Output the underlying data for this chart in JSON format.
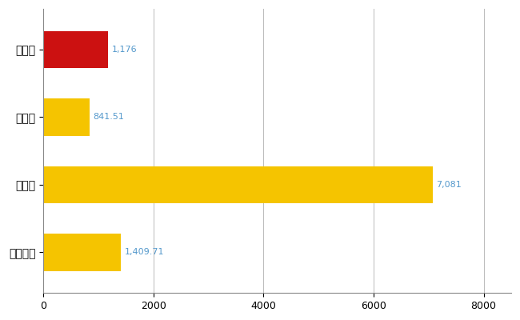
{
  "categories": [
    "石垣市",
    "県平均",
    "県最大",
    "全国平均"
  ],
  "values": [
    1176,
    841.51,
    7081,
    1409.71
  ],
  "bar_colors": [
    "#CC1111",
    "#F5C400",
    "#F5C400",
    "#F5C400"
  ],
  "value_labels": [
    "1,176",
    "841.51",
    "7,081",
    "1,409.71"
  ],
  "xlim": [
    0,
    8500
  ],
  "xticks": [
    0,
    2000,
    4000,
    6000,
    8000
  ],
  "background_color": "#FFFFFF",
  "grid_color": "#BBBBBB",
  "label_color": "#5599CC",
  "bar_height": 0.55,
  "figsize": [
    6.5,
    4.0
  ],
  "dpi": 100
}
